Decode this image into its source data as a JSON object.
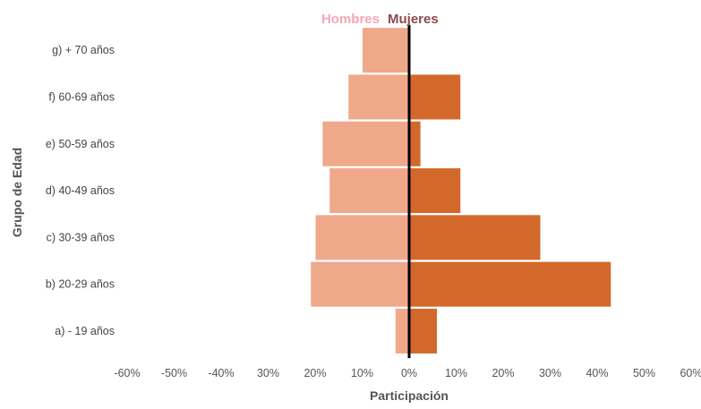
{
  "chart_data": {
    "type": "bar",
    "orientation": "horizontal",
    "stacking": "diverging",
    "categories": [
      "a) - 19 años",
      "b) 20-29 años",
      "c) 30-39 años",
      "d) 40-49 años",
      "e) 50-59 años",
      "f) 60-69 años",
      "g) + 70 años"
    ],
    "series": [
      {
        "name": "Hombres",
        "values": [
          3,
          21,
          20,
          17,
          18.5,
          13,
          10
        ],
        "color": "#F0A88A"
      },
      {
        "name": "Mujeres",
        "values": [
          6,
          43,
          28,
          11,
          2.5,
          11,
          0
        ],
        "color": "#D2692A"
      }
    ],
    "legend": {
      "position": "top-center",
      "colors": [
        "#F4A7B9",
        "#8B4A4E"
      ]
    },
    "xlabel": "Participación",
    "ylabel": "Grupo de Edad",
    "xlim": [
      -60,
      60
    ],
    "xtick_labels": [
      "-60%",
      "-50%",
      "-40%",
      "30%",
      "20%",
      "10%",
      "0%",
      "10%",
      "20%",
      "30%",
      "40%",
      "50%",
      "60%"
    ],
    "grid": false
  }
}
